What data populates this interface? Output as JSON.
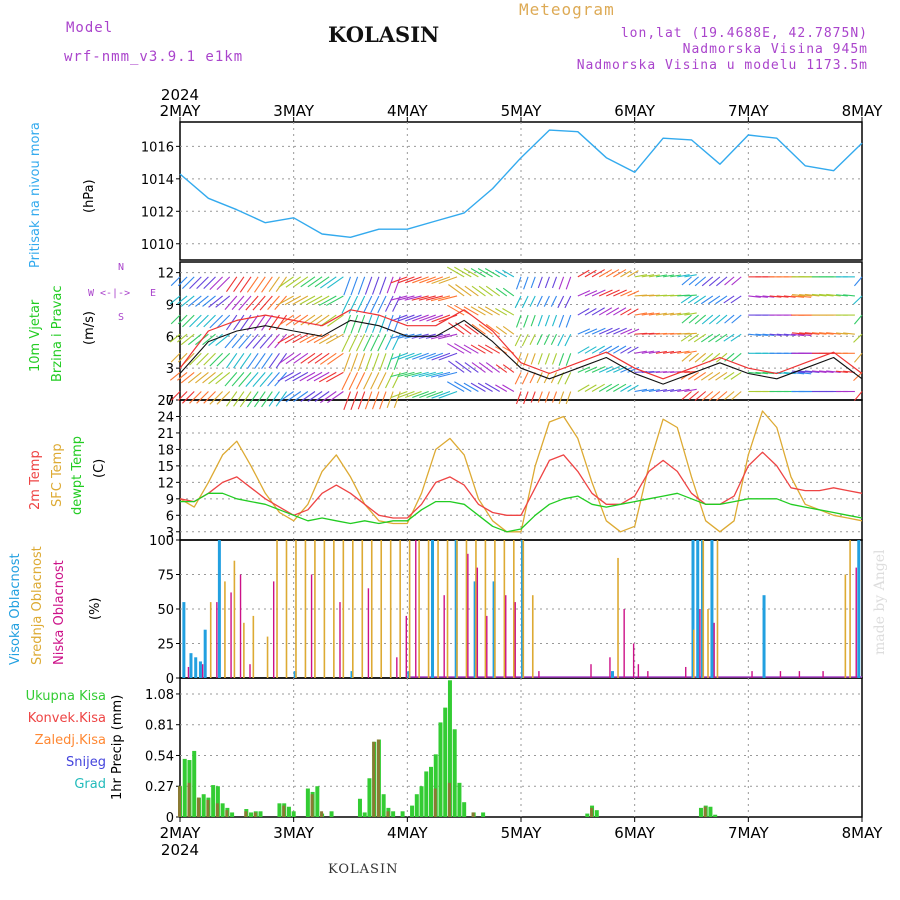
{
  "header": {
    "model_label": "Model",
    "model_name": "wrf-nmm_v3.9.1  e1km",
    "station": "KOLASIN",
    "title": "Meteogram",
    "lonlat": "lon,lat (19.4688E, 42.7875N)",
    "elevation": "Nadmorska Visina 945m",
    "elevation_model": "Nadmorska Visina u modelu 1173.5m",
    "watermark": "made by Angel",
    "footer": "KOLASIN"
  },
  "colors": {
    "pressure": "#33aaee",
    "temp2m": "#ee4444",
    "sfc": "#ddaa33",
    "dewpt": "#22cc22",
    "high_cloud": "#22a0e0",
    "mid_cloud": "#ddaa33",
    "low_cloud": "#cc1188",
    "total_precip": "#33cc33",
    "conv_precip": "#ee4444",
    "frozen_precip": "#ff8833",
    "snow": "#4444dd",
    "hail": "#22bbbb",
    "wind_label": "#22cc22",
    "purple": "#aa44cc"
  },
  "x_axis": {
    "year": "2024",
    "days": [
      "2MAY",
      "3MAY",
      "4MAY",
      "5MAY",
      "6MAY",
      "7MAY",
      "8MAY"
    ]
  },
  "chart_data": [
    {
      "type": "line",
      "panel": "pressure",
      "labels": [
        "Pritisak na nivou mora",
        "(hPa)"
      ],
      "ylim": [
        1009,
        1017.5
      ],
      "yticks": [
        1010,
        1012,
        1014,
        1016
      ],
      "x_unit": "hours from 2MAY 00",
      "x": [
        0,
        6,
        12,
        18,
        24,
        30,
        36,
        42,
        48,
        54,
        60,
        66,
        72,
        78,
        84,
        90,
        96,
        102,
        108,
        114,
        120,
        126,
        132,
        138,
        144
      ],
      "series": [
        {
          "values": [
            1014.3,
            1012.8,
            1012.1,
            1011.3,
            1011.6,
            1010.6,
            1010.4,
            1010.9,
            1010.9,
            1011.4,
            1011.9,
            1013.4,
            1015.3,
            1017.0,
            1016.9,
            1015.3,
            1014.4,
            1016.5,
            1016.4,
            1014.9,
            1016.7,
            1016.5,
            1014.8,
            1014.5,
            1016.2
          ]
        }
      ]
    },
    {
      "type": "line",
      "panel": "wind",
      "labels": [
        "10m Vjetar",
        "Brzina i Pravac",
        "(m/s)"
      ],
      "compass": {
        "n": "N",
        "s": "S",
        "w": "W",
        "e": "E"
      },
      "ylim": [
        0,
        13
      ],
      "yticks": [
        0,
        3,
        6,
        9,
        12
      ],
      "x_unit": "hours from 2MAY 00",
      "x": [
        0,
        6,
        12,
        18,
        24,
        30,
        36,
        42,
        48,
        54,
        60,
        66,
        72,
        78,
        84,
        90,
        96,
        102,
        108,
        114,
        120,
        126,
        132,
        138,
        144
      ],
      "series": [
        {
          "name": "speed",
          "values": [
            2.5,
            5.5,
            6.5,
            7.0,
            6.5,
            6.0,
            7.5,
            7.0,
            6.0,
            6.0,
            7.5,
            5.5,
            3.0,
            2.0,
            3.0,
            4.0,
            2.5,
            1.5,
            2.5,
            3.5,
            2.5,
            2.0,
            3.0,
            4.0,
            2.0
          ]
        },
        {
          "name": "gust",
          "values": [
            3.0,
            6.5,
            7.5,
            8.0,
            7.5,
            7.0,
            8.5,
            8.0,
            7.0,
            7.0,
            8.5,
            6.5,
            3.5,
            2.5,
            3.5,
            4.5,
            3.0,
            2.0,
            3.0,
            4.0,
            3.0,
            2.5,
            3.5,
            4.5,
            2.5
          ]
        }
      ]
    },
    {
      "type": "line",
      "panel": "temperature",
      "labels": [
        "2m Temp",
        "SFC Temp",
        "dewpt Temp",
        "(C)"
      ],
      "ylim": [
        1.5,
        27
      ],
      "yticks": [
        3,
        6,
        9,
        12,
        15,
        18,
        21,
        24,
        27
      ],
      "x_unit": "hours from 2MAY 00",
      "x": [
        0,
        3,
        6,
        9,
        12,
        15,
        18,
        21,
        24,
        27,
        30,
        33,
        36,
        39,
        42,
        45,
        48,
        51,
        54,
        57,
        60,
        63,
        66,
        69,
        72,
        75,
        78,
        81,
        84,
        87,
        90,
        93,
        96,
        99,
        102,
        105,
        108,
        111,
        114,
        117,
        120,
        123,
        126,
        129,
        132,
        135,
        138,
        141,
        144
      ],
      "series": [
        {
          "name": "2m Temp",
          "values": [
            9,
            8.5,
            10,
            12,
            13,
            11,
            9,
            7.5,
            6,
            7,
            10,
            11.5,
            10,
            8,
            6,
            5.5,
            5.5,
            8,
            12,
            13,
            11.5,
            8,
            6.5,
            6,
            6,
            11,
            16,
            17,
            14,
            10,
            8,
            8,
            9.5,
            14,
            16,
            14,
            10,
            8,
            8,
            9.5,
            15,
            17.5,
            15,
            11,
            10.5,
            10.5,
            11,
            10.5,
            10
          ]
        },
        {
          "name": "SFC Temp",
          "values": [
            9,
            7.5,
            12,
            17,
            19.5,
            15,
            10,
            6.5,
            5,
            8,
            14,
            17,
            13,
            8,
            5,
            4.5,
            4.5,
            10,
            18,
            20,
            17,
            9,
            5,
            3,
            3,
            15,
            23,
            24,
            20,
            12,
            5,
            3,
            4,
            15,
            23.5,
            22,
            13,
            5,
            3,
            5,
            17,
            25,
            22,
            13,
            8,
            7,
            6,
            5.5,
            5
          ]
        },
        {
          "name": "dewpt Temp",
          "values": [
            8.5,
            8.5,
            10,
            10,
            9,
            8.5,
            8,
            7,
            6,
            5,
            5.5,
            5,
            4.5,
            5,
            4.5,
            5,
            5,
            7,
            8.5,
            8.5,
            8,
            6,
            4,
            3,
            3.5,
            6,
            8,
            9,
            9.5,
            8,
            7.5,
            8,
            8.5,
            9,
            9.5,
            10,
            9,
            8,
            8,
            8.5,
            9,
            9,
            9,
            8,
            7.5,
            7,
            6.5,
            6,
            5.5
          ]
        }
      ]
    },
    {
      "type": "bar",
      "panel": "cloud",
      "labels": [
        "Visoka Oblacnost",
        "Srednja Oblacnost",
        "Niska Oblacnost",
        "(%)"
      ],
      "ylim": [
        0,
        100
      ],
      "yticks": [
        0,
        25,
        50,
        75,
        100
      ],
      "x_unit": "hours from 2MAY 00",
      "series": [
        {
          "name": "Visoka Oblacnost",
          "bars": [
            [
              0.5,
              55
            ],
            [
              2,
              18
            ],
            [
              3,
              15
            ],
            [
              4,
              12
            ],
            [
              5,
              35
            ],
            [
              8,
              100
            ],
            [
              24,
              5
            ],
            [
              36,
              5
            ],
            [
              48,
              5
            ],
            [
              53,
              100
            ],
            [
              58,
              100
            ],
            [
              62,
              70
            ],
            [
              66,
              70
            ],
            [
              72,
              100
            ],
            [
              91,
              5
            ],
            [
              108,
              100
            ],
            [
              109,
              100
            ],
            [
              110,
              100
            ],
            [
              112,
              100
            ],
            [
              123,
              60
            ],
            [
              143,
              100
            ]
          ]
        },
        {
          "name": "Srednja Oblacnost",
          "bars": [
            [
              6,
              55
            ],
            [
              9,
              70
            ],
            [
              11,
              85
            ],
            [
              13,
              40
            ],
            [
              15,
              45
            ],
            [
              18,
              30
            ],
            [
              20,
              100
            ],
            [
              22,
              100
            ],
            [
              24,
              100
            ],
            [
              26,
              100
            ],
            [
              28,
              100
            ],
            [
              30,
              100
            ],
            [
              32,
              100
            ],
            [
              34,
              100
            ],
            [
              36,
              100
            ],
            [
              38,
              100
            ],
            [
              40,
              100
            ],
            [
              42,
              100
            ],
            [
              44,
              100
            ],
            [
              46,
              100
            ],
            [
              48,
              100
            ],
            [
              50,
              100
            ],
            [
              52,
              100
            ],
            [
              54,
              100
            ],
            [
              56,
              100
            ],
            [
              58,
              100
            ],
            [
              60,
              100
            ],
            [
              62,
              100
            ],
            [
              64,
              100
            ],
            [
              66,
              100
            ],
            [
              68,
              100
            ],
            [
              70,
              100
            ],
            [
              72,
              100
            ],
            [
              74,
              60
            ],
            [
              92,
              87
            ],
            [
              108,
              35
            ],
            [
              110,
              100
            ],
            [
              111,
              50
            ],
            [
              113,
              100
            ],
            [
              140,
              75
            ],
            [
              141,
              100
            ]
          ]
        },
        {
          "name": "Niska Oblacnost",
          "bars": [
            [
              1,
              8
            ],
            [
              4,
              10
            ],
            [
              7,
              55
            ],
            [
              10,
              62
            ],
            [
              12,
              75
            ],
            [
              14,
              10
            ],
            [
              19,
              70
            ],
            [
              27,
              75
            ],
            [
              33,
              55
            ],
            [
              39,
              65
            ],
            [
              45,
              15
            ],
            [
              47,
              45
            ],
            [
              49,
              100
            ],
            [
              55,
              60
            ],
            [
              60,
              90
            ],
            [
              62,
              80
            ],
            [
              64,
              45
            ],
            [
              68,
              60
            ],
            [
              70,
              55
            ],
            [
              75,
              5
            ],
            [
              86,
              10
            ],
            [
              90,
              15
            ],
            [
              93,
              50
            ],
            [
              95,
              25
            ],
            [
              96,
              10
            ],
            [
              98,
              5
            ],
            [
              106,
              8
            ],
            [
              109,
              50
            ],
            [
              112,
              40
            ],
            [
              120,
              5
            ],
            [
              126,
              5
            ],
            [
              130,
              5
            ],
            [
              135,
              5
            ],
            [
              142,
              80
            ]
          ]
        }
      ]
    },
    {
      "type": "bar",
      "panel": "precip",
      "labels": [
        "Ukupna  Kisa",
        "Konvek.Kisa",
        "Zaledj.Kisa",
        "Snijeg",
        "Grad",
        "1hr Precip (mm)"
      ],
      "ylim": [
        0,
        1.22
      ],
      "yticks": [
        0,
        0.27,
        0.54,
        0.81,
        1.08
      ],
      "ytick_labels": [
        "0",
        "0.27",
        "0.54",
        "0.81",
        "1.08"
      ],
      "x_unit": "hours from 2MAY 00",
      "series": [
        {
          "name": "Ukupna Kisa",
          "bars": [
            [
              0,
              0.27
            ],
            [
              1,
              0.51
            ],
            [
              2,
              0.5
            ],
            [
              3,
              0.58
            ],
            [
              4,
              0.17
            ],
            [
              5,
              0.2
            ],
            [
              6,
              0.17
            ],
            [
              7,
              0.28
            ],
            [
              8,
              0.27
            ],
            [
              9,
              0.12
            ],
            [
              10,
              0.08
            ],
            [
              11,
              0.04
            ],
            [
              14,
              0.07
            ],
            [
              15,
              0.04
            ],
            [
              16,
              0.05
            ],
            [
              17,
              0.05
            ],
            [
              21,
              0.12
            ],
            [
              22,
              0.12
            ],
            [
              23,
              0.09
            ],
            [
              24,
              0.05
            ],
            [
              27,
              0.25
            ],
            [
              28,
              0.22
            ],
            [
              29,
              0.27
            ],
            [
              30,
              0.03
            ],
            [
              32,
              0.05
            ],
            [
              38,
              0.16
            ],
            [
              39,
              0.04
            ],
            [
              40,
              0.34
            ],
            [
              41,
              0.66
            ],
            [
              42,
              0.68
            ],
            [
              43,
              0.2
            ],
            [
              44,
              0.08
            ],
            [
              45,
              0.05
            ],
            [
              47,
              0.05
            ],
            [
              49,
              0.1
            ],
            [
              50,
              0.2
            ],
            [
              51,
              0.27
            ],
            [
              52,
              0.4
            ],
            [
              53,
              0.44
            ],
            [
              54,
              0.55
            ],
            [
              55,
              0.83
            ],
            [
              56,
              0.96
            ],
            [
              57,
              1.2
            ],
            [
              58,
              0.77
            ],
            [
              59,
              0.3
            ],
            [
              60,
              0.13
            ],
            [
              62,
              0.04
            ],
            [
              64,
              0.04
            ],
            [
              86,
              0.03
            ],
            [
              87,
              0.1
            ],
            [
              88,
              0.06
            ],
            [
              110,
              0.08
            ],
            [
              111,
              0.1
            ],
            [
              112,
              0.09
            ],
            [
              113,
              0.02
            ]
          ]
        },
        {
          "name": "Konvek.Kisa",
          "bars": [
            [
              0,
              0.27
            ],
            [
              2,
              0.3
            ],
            [
              4,
              0.17
            ],
            [
              6,
              0.15
            ],
            [
              8,
              0.12
            ],
            [
              10,
              0.06
            ],
            [
              14,
              0.05
            ],
            [
              16,
              0.04
            ],
            [
              22,
              0.1
            ],
            [
              28,
              0.2
            ],
            [
              30,
              0.05
            ],
            [
              41,
              0.66
            ],
            [
              42,
              0.68
            ],
            [
              44,
              0.05
            ],
            [
              54,
              0.25
            ],
            [
              57,
              0.3
            ],
            [
              62,
              0.04
            ],
            [
              87,
              0.08
            ],
            [
              111,
              0.09
            ]
          ]
        }
      ]
    }
  ]
}
